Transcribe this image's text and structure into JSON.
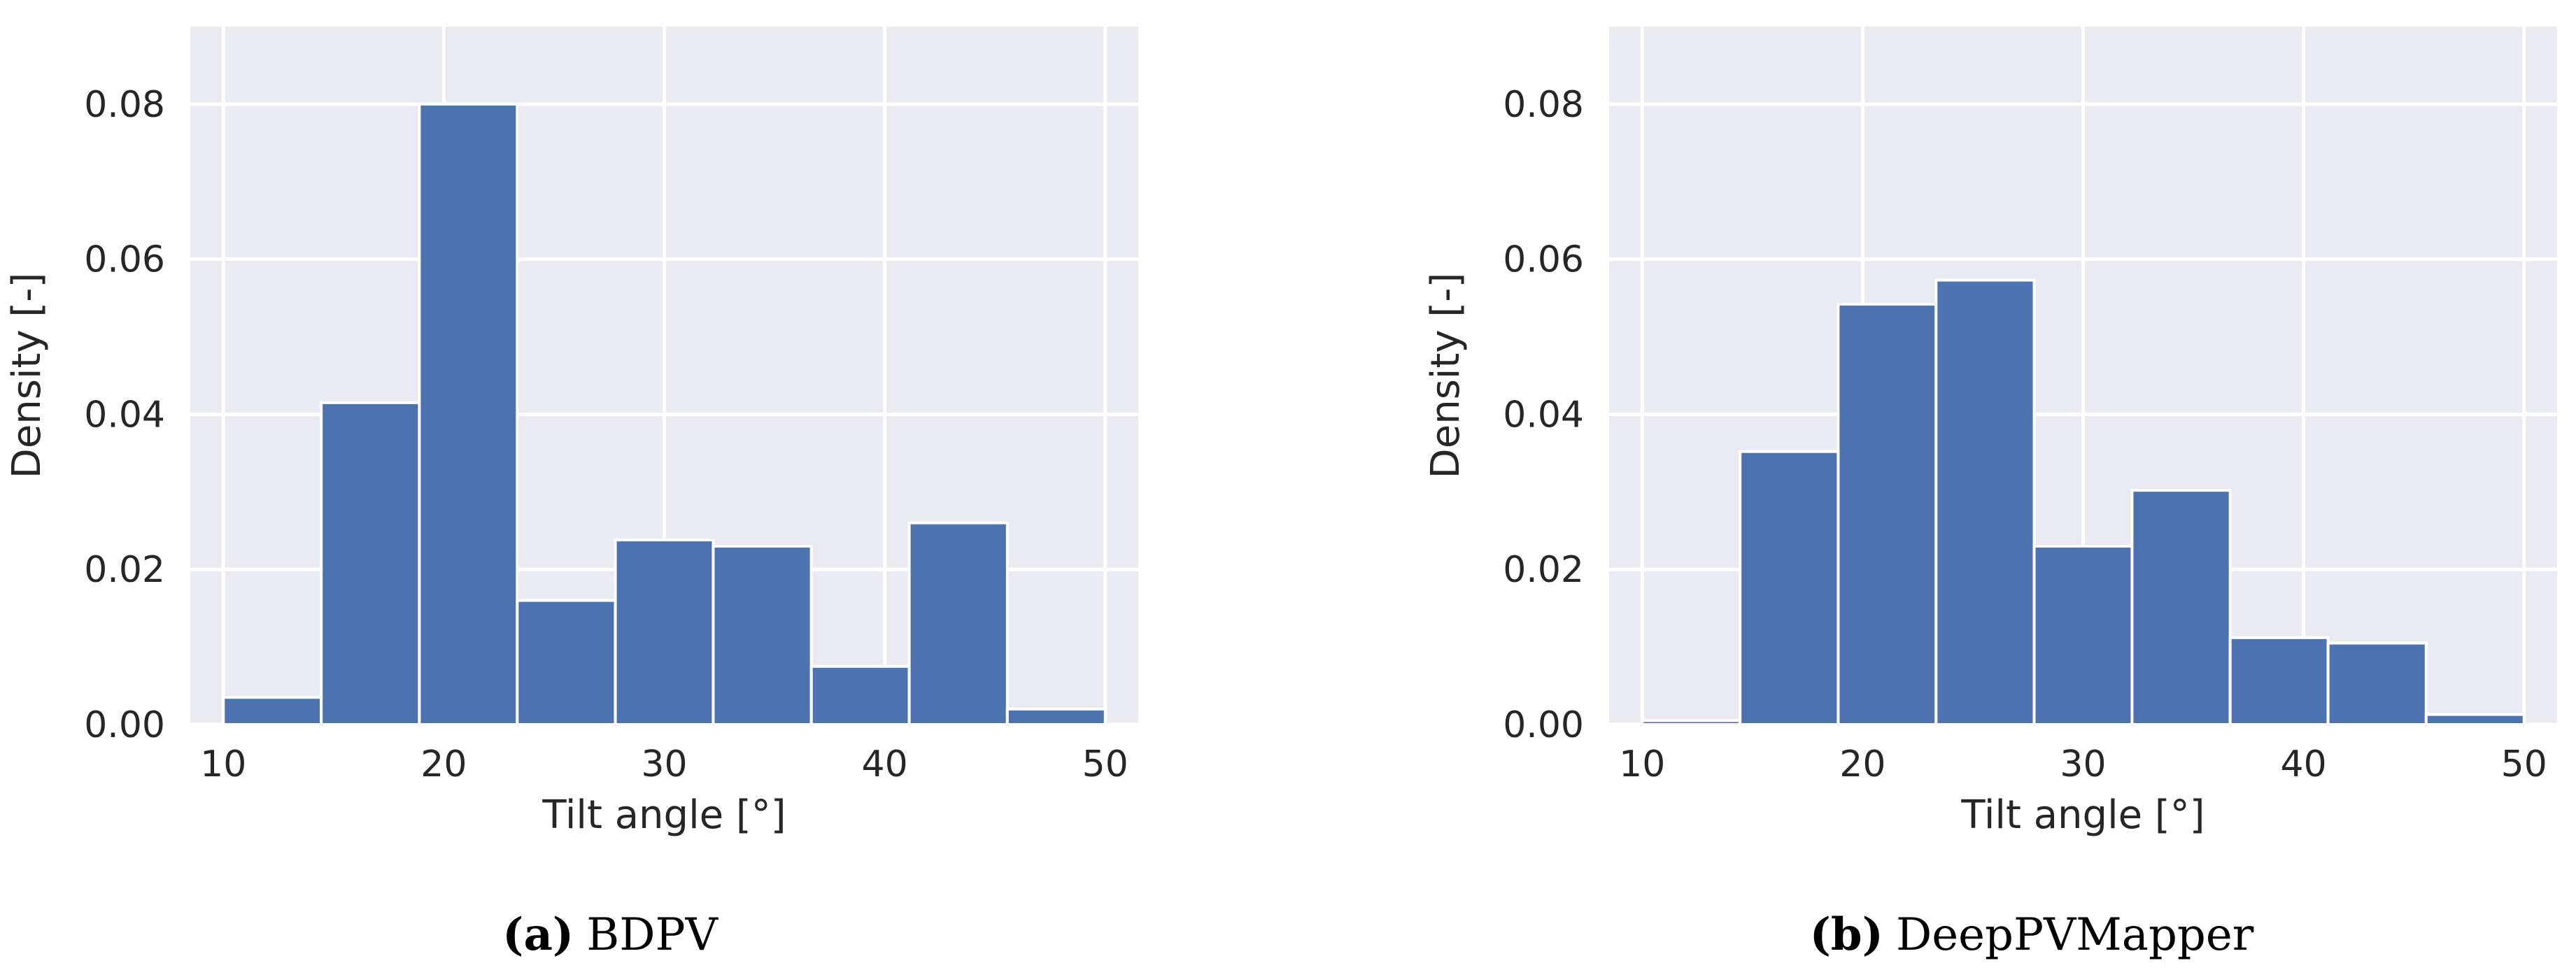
{
  "chart_data": [
    {
      "type": "bar",
      "caption_label": "(a)",
      "caption_text": "BDPV",
      "xlabel": "Tilt angle [°]",
      "ylabel": "Density [-]",
      "xlim": [
        8.5,
        51.5
      ],
      "ylim": [
        0,
        0.09
      ],
      "xticks": [
        10,
        20,
        30,
        40,
        50
      ],
      "yticks": [
        0.0,
        0.02,
        0.04,
        0.06,
        0.08
      ],
      "ytick_labels": [
        "0.00",
        "0.02",
        "0.04",
        "0.06",
        "0.08"
      ],
      "bin_edges": [
        10,
        14.44,
        18.89,
        23.33,
        27.78,
        32.22,
        36.67,
        41.11,
        45.56,
        50
      ],
      "values": [
        0.0035,
        0.0415,
        0.08,
        0.016,
        0.0238,
        0.023,
        0.0075,
        0.026,
        0.002
      ],
      "grid": true
    },
    {
      "type": "bar",
      "caption_label": "(b)",
      "caption_text": "DeepPVMapper",
      "xlabel": "Tilt angle [°]",
      "ylabel": "Density [-]",
      "xlim": [
        8.5,
        51.5
      ],
      "ylim": [
        0,
        0.09
      ],
      "xticks": [
        10,
        20,
        30,
        40,
        50
      ],
      "yticks": [
        0.0,
        0.02,
        0.04,
        0.06,
        0.08
      ],
      "ytick_labels": [
        "0.00",
        "0.02",
        "0.04",
        "0.06",
        "0.08"
      ],
      "bin_edges": [
        10,
        14.44,
        18.89,
        23.33,
        27.78,
        32.22,
        36.67,
        41.11,
        45.56,
        50
      ],
      "values": [
        0.0005,
        0.0352,
        0.0542,
        0.0573,
        0.023,
        0.0302,
        0.0112,
        0.0105,
        0.0013
      ],
      "grid": true
    }
  ]
}
